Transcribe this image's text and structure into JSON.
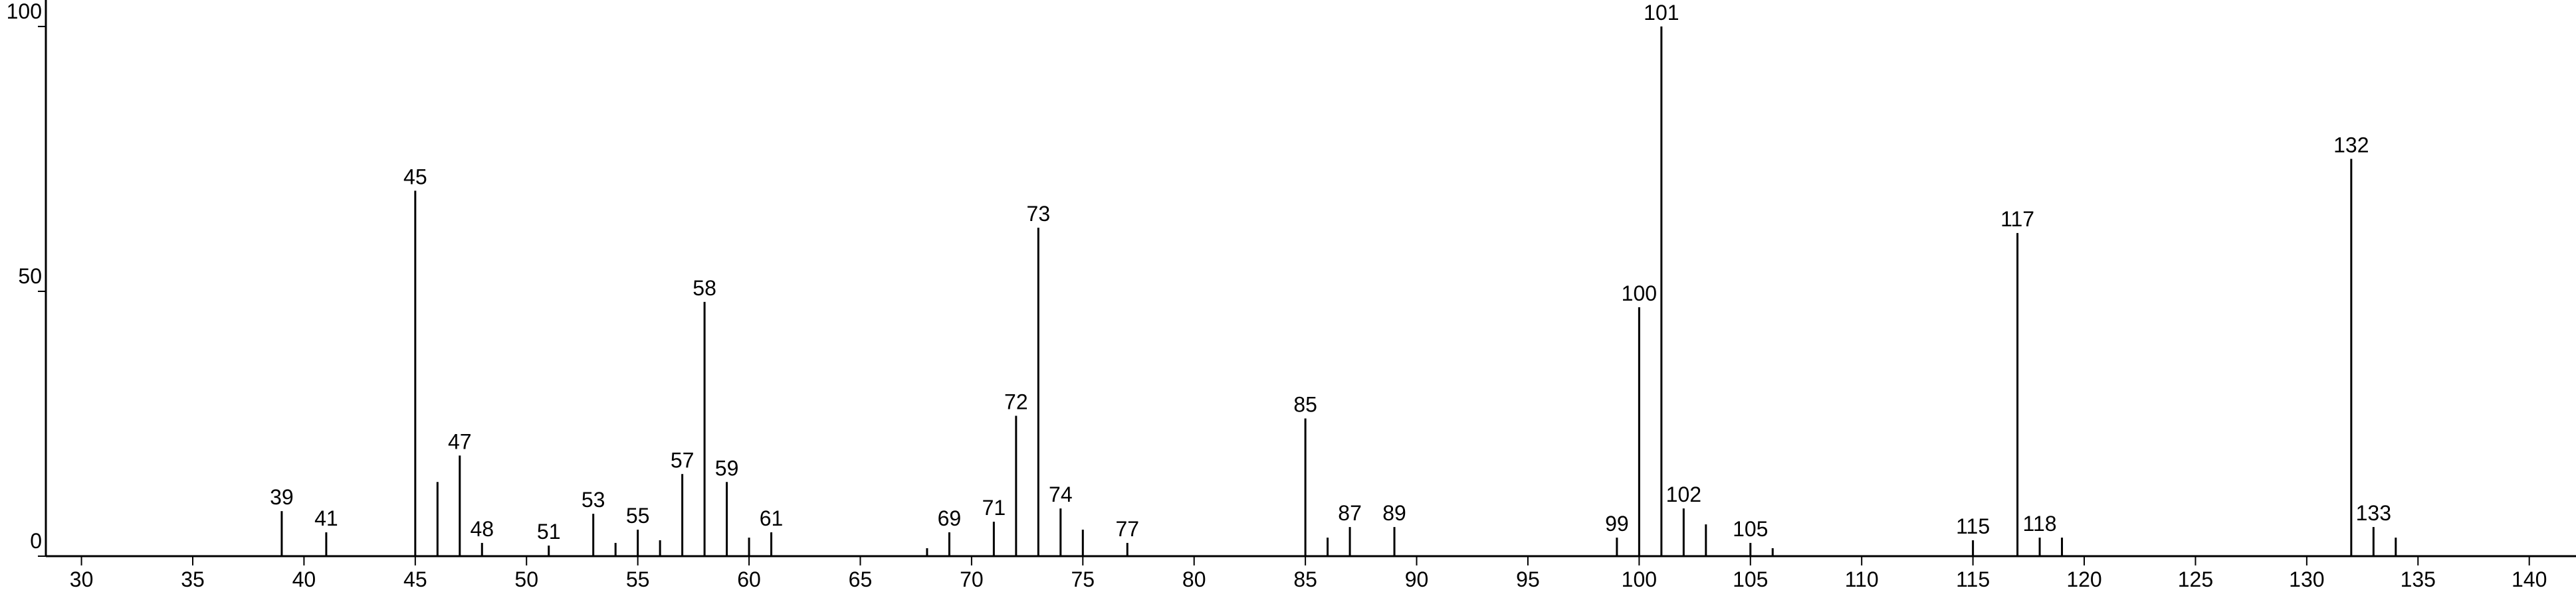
{
  "chart_data": {
    "type": "stem",
    "color": "#000000",
    "x": [
      39,
      41,
      45,
      46,
      47,
      48,
      51,
      53,
      54,
      55,
      56,
      57,
      58,
      59,
      60,
      61,
      68,
      69,
      71,
      72,
      73,
      74,
      75,
      77,
      85,
      86,
      87,
      89,
      99,
      100,
      101,
      102,
      103,
      105,
      106,
      115,
      117,
      118,
      119,
      132,
      133,
      134
    ],
    "values": [
      8.5,
      4.5,
      69,
      14,
      19,
      2.5,
      2,
      8,
      2.5,
      5,
      3,
      15.5,
      48,
      14,
      3.5,
      4.5,
      1.5,
      4.5,
      6.5,
      26.5,
      62,
      9,
      5,
      2.5,
      26,
      3.5,
      5.5,
      5.5,
      3.5,
      47,
      100,
      9,
      6,
      2.5,
      1.5,
      3,
      61,
      3.5,
      3.5,
      75,
      5.5,
      3.5
    ],
    "labels": [
      "39",
      "41",
      "45",
      null,
      "47",
      "48",
      "51",
      "53",
      null,
      "55",
      null,
      "57",
      "58",
      "59",
      null,
      "61",
      null,
      "69",
      "71",
      "72",
      "73",
      "74",
      null,
      "77",
      "85",
      null,
      "87",
      "89",
      "99",
      "100",
      "101",
      "102",
      null,
      "105",
      null,
      "115",
      "117",
      "118",
      null,
      "132",
      "133",
      null
    ],
    "xlim": [
      28.4,
      142.1
    ],
    "ylim": [
      0,
      105
    ],
    "xticks": [
      30,
      35,
      40,
      45,
      50,
      55,
      60,
      65,
      70,
      75,
      80,
      85,
      90,
      95,
      100,
      105,
      110,
      115,
      120,
      125,
      130,
      135,
      140
    ],
    "yticks": [
      0,
      50,
      100
    ]
  }
}
